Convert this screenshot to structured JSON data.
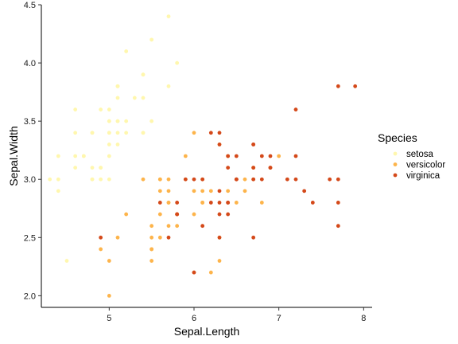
{
  "chart_data": {
    "type": "scatter",
    "xlabel": "Sepal.Length",
    "ylabel": "Sepal.Width",
    "xlim": [
      4.2,
      8.1
    ],
    "ylim": [
      1.9,
      4.5
    ],
    "x_ticks": [
      5,
      6,
      7,
      8
    ],
    "y_ticks": [
      2.0,
      2.5,
      3.0,
      3.5,
      4.0,
      4.5
    ],
    "x_tick_labels": [
      "5",
      "6",
      "7",
      "8"
    ],
    "y_tick_labels": [
      "2.0",
      "2.5",
      "3.0",
      "3.5",
      "4.0",
      "4.5"
    ],
    "grid": false,
    "legend": {
      "title": "Species",
      "placement": "right"
    },
    "series": [
      {
        "name": "setosa",
        "color": "#FFF7AE",
        "points": [
          [
            5.1,
            3.5
          ],
          [
            4.9,
            3.0
          ],
          [
            4.7,
            3.2
          ],
          [
            4.6,
            3.1
          ],
          [
            5.0,
            3.6
          ],
          [
            5.4,
            3.9
          ],
          [
            4.6,
            3.4
          ],
          [
            5.0,
            3.4
          ],
          [
            4.4,
            2.9
          ],
          [
            4.9,
            3.1
          ],
          [
            5.4,
            3.7
          ],
          [
            4.8,
            3.4
          ],
          [
            4.8,
            3.0
          ],
          [
            4.3,
            3.0
          ],
          [
            5.8,
            4.0
          ],
          [
            5.7,
            4.4
          ],
          [
            5.4,
            3.9
          ],
          [
            5.1,
            3.5
          ],
          [
            5.7,
            3.8
          ],
          [
            5.1,
            3.8
          ],
          [
            5.4,
            3.4
          ],
          [
            5.1,
            3.7
          ],
          [
            4.6,
            3.6
          ],
          [
            5.1,
            3.3
          ],
          [
            4.8,
            3.4
          ],
          [
            5.0,
            3.0
          ],
          [
            5.0,
            3.4
          ],
          [
            5.2,
            3.5
          ],
          [
            5.2,
            3.4
          ],
          [
            4.7,
            3.2
          ],
          [
            4.8,
            3.1
          ],
          [
            5.4,
            3.4
          ],
          [
            5.2,
            4.1
          ],
          [
            5.5,
            4.2
          ],
          [
            4.9,
            3.1
          ],
          [
            5.0,
            3.2
          ],
          [
            5.5,
            3.5
          ],
          [
            4.9,
            3.6
          ],
          [
            4.4,
            3.0
          ],
          [
            5.1,
            3.4
          ],
          [
            5.0,
            3.5
          ],
          [
            4.5,
            2.3
          ],
          [
            4.4,
            3.2
          ],
          [
            5.0,
            3.5
          ],
          [
            5.1,
            3.8
          ],
          [
            4.8,
            3.0
          ],
          [
            5.1,
            3.8
          ],
          [
            4.6,
            3.2
          ],
          [
            5.3,
            3.7
          ],
          [
            5.0,
            3.3
          ]
        ]
      },
      {
        "name": "versicolor",
        "color": "#FDB44B",
        "points": [
          [
            7.0,
            3.2
          ],
          [
            6.4,
            3.2
          ],
          [
            6.9,
            3.1
          ],
          [
            5.5,
            2.3
          ],
          [
            6.5,
            2.8
          ],
          [
            5.7,
            2.8
          ],
          [
            6.3,
            3.3
          ],
          [
            4.9,
            2.4
          ],
          [
            6.6,
            2.9
          ],
          [
            5.2,
            2.7
          ],
          [
            5.0,
            2.0
          ],
          [
            5.9,
            3.0
          ],
          [
            6.0,
            2.2
          ],
          [
            6.1,
            2.9
          ],
          [
            5.6,
            2.9
          ],
          [
            6.7,
            3.1
          ],
          [
            5.6,
            3.0
          ],
          [
            5.8,
            2.7
          ],
          [
            6.2,
            2.2
          ],
          [
            5.6,
            2.5
          ],
          [
            5.9,
            3.2
          ],
          [
            6.1,
            2.8
          ],
          [
            6.3,
            2.5
          ],
          [
            6.1,
            2.8
          ],
          [
            6.4,
            2.9
          ],
          [
            6.6,
            3.0
          ],
          [
            6.8,
            2.8
          ],
          [
            6.7,
            3.0
          ],
          [
            6.0,
            2.9
          ],
          [
            5.7,
            2.6
          ],
          [
            5.5,
            2.4
          ],
          [
            5.5,
            2.4
          ],
          [
            5.8,
            2.7
          ],
          [
            6.0,
            2.7
          ],
          [
            5.4,
            3.0
          ],
          [
            6.0,
            3.4
          ],
          [
            6.7,
            3.1
          ],
          [
            6.3,
            2.3
          ],
          [
            5.6,
            3.0
          ],
          [
            5.5,
            2.5
          ],
          [
            5.5,
            2.6
          ],
          [
            6.1,
            3.0
          ],
          [
            5.8,
            2.6
          ],
          [
            5.0,
            2.3
          ],
          [
            5.6,
            2.7
          ],
          [
            5.7,
            3.0
          ],
          [
            5.7,
            2.9
          ],
          [
            6.2,
            2.9
          ],
          [
            5.1,
            2.5
          ],
          [
            5.7,
            2.8
          ]
        ]
      },
      {
        "name": "virginica",
        "color": "#D4491A",
        "points": [
          [
            6.3,
            3.3
          ],
          [
            5.8,
            2.7
          ],
          [
            7.1,
            3.0
          ],
          [
            6.3,
            2.9
          ],
          [
            6.5,
            3.0
          ],
          [
            7.6,
            3.0
          ],
          [
            4.9,
            2.5
          ],
          [
            7.3,
            2.9
          ],
          [
            6.7,
            2.5
          ],
          [
            7.2,
            3.6
          ],
          [
            6.5,
            3.2
          ],
          [
            6.4,
            2.7
          ],
          [
            6.8,
            3.0
          ],
          [
            5.7,
            2.5
          ],
          [
            5.8,
            2.8
          ],
          [
            6.4,
            3.2
          ],
          [
            6.5,
            3.0
          ],
          [
            7.7,
            3.8
          ],
          [
            7.7,
            2.6
          ],
          [
            6.0,
            2.2
          ],
          [
            6.9,
            3.2
          ],
          [
            5.6,
            2.8
          ],
          [
            7.7,
            2.8
          ],
          [
            6.3,
            2.7
          ],
          [
            6.7,
            3.3
          ],
          [
            7.2,
            3.2
          ],
          [
            6.2,
            2.8
          ],
          [
            6.1,
            3.0
          ],
          [
            6.4,
            2.8
          ],
          [
            7.2,
            3.0
          ],
          [
            7.4,
            2.8
          ],
          [
            7.9,
            3.8
          ],
          [
            6.4,
            2.8
          ],
          [
            6.3,
            2.8
          ],
          [
            6.1,
            2.6
          ],
          [
            7.7,
            3.0
          ],
          [
            6.3,
            3.4
          ],
          [
            6.4,
            3.1
          ],
          [
            6.0,
            3.0
          ],
          [
            6.9,
            3.1
          ],
          [
            6.7,
            3.1
          ],
          [
            6.9,
            3.1
          ],
          [
            5.8,
            2.7
          ],
          [
            6.8,
            3.2
          ],
          [
            6.7,
            3.3
          ],
          [
            6.7,
            3.0
          ],
          [
            6.3,
            2.5
          ],
          [
            6.5,
            3.0
          ],
          [
            6.2,
            3.4
          ],
          [
            5.9,
            3.0
          ]
        ]
      }
    ]
  }
}
